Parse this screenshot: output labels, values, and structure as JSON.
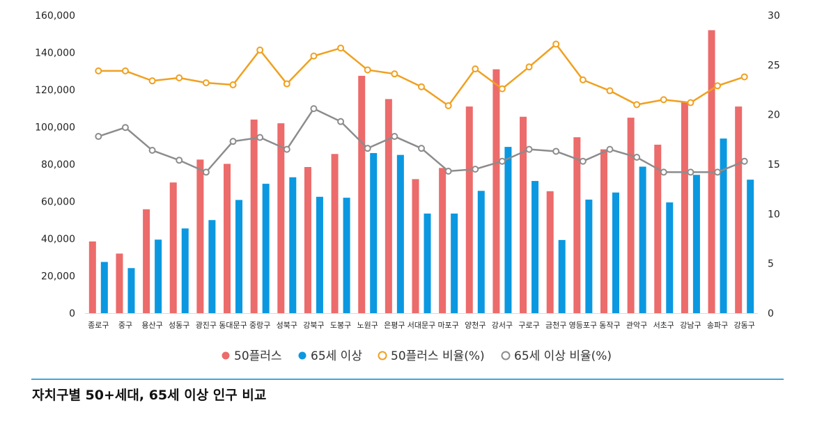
{
  "chart_data": {
    "type": "bar",
    "categories": [
      "종로구",
      "중구",
      "용산구",
      "성동구",
      "광진구",
      "동대문구",
      "중랑구",
      "성북구",
      "강북구",
      "도봉구",
      "노원구",
      "은평구",
      "서대문구",
      "마포구",
      "양천구",
      "강서구",
      "구로구",
      "금천구",
      "영등포구",
      "동작구",
      "관악구",
      "서초구",
      "강남구",
      "송파구",
      "강동구"
    ],
    "series": [
      {
        "name": "50플러스",
        "kind": "bar",
        "axis": "left",
        "color": "#ec6b6b",
        "values": [
          38500,
          32000,
          55800,
          70200,
          82500,
          80200,
          104000,
          102000,
          78500,
          85500,
          127500,
          115000,
          72000,
          78000,
          111000,
          131000,
          105500,
          65500,
          94500,
          88000,
          105000,
          90500,
          113500,
          152000,
          111000
        ]
      },
      {
        "name": "65세 이상",
        "kind": "bar",
        "axis": "left",
        "color": "#0b98e0",
        "values": [
          27500,
          24200,
          39500,
          45500,
          50000,
          60800,
          69500,
          73000,
          62500,
          62000,
          86000,
          85000,
          53500,
          53500,
          65700,
          89300,
          71000,
          39300,
          61000,
          64800,
          78700,
          59500,
          74300,
          93800,
          71700
        ]
      },
      {
        "name": "50플러스 비율(%)",
        "kind": "line",
        "axis": "right",
        "color": "#f0a020",
        "values": [
          24.4,
          24.4,
          23.4,
          23.7,
          23.2,
          23.0,
          26.5,
          23.1,
          25.9,
          26.7,
          24.5,
          24.1,
          22.8,
          20.9,
          24.6,
          22.6,
          24.8,
          27.1,
          23.5,
          22.4,
          21.0,
          21.5,
          21.2,
          22.9,
          23.8
        ]
      },
      {
        "name": "65세 이상 비율(%)",
        "kind": "line",
        "axis": "right",
        "color": "#8c8c8c",
        "values": [
          17.8,
          18.7,
          16.4,
          15.4,
          14.2,
          17.3,
          17.7,
          16.5,
          20.6,
          19.3,
          16.6,
          17.8,
          16.6,
          14.3,
          14.5,
          15.3,
          16.5,
          16.3,
          15.3,
          16.5,
          15.7,
          14.2,
          14.2,
          14.2,
          15.3
        ]
      }
    ],
    "y_left": {
      "min": 0,
      "max": 160000,
      "ticks": [
        0,
        20000,
        40000,
        60000,
        80000,
        100000,
        120000,
        140000,
        160000
      ],
      "tick_labels": [
        "0",
        "20,000",
        "40,000",
        "60,000",
        "80,000",
        "100,000",
        "120,000",
        "140,000",
        "160,000"
      ]
    },
    "y_right": {
      "min": 0,
      "max": 30,
      "ticks": [
        0,
        5,
        10,
        15,
        20,
        25,
        30
      ],
      "tick_labels": [
        "0",
        "5",
        "10",
        "15",
        "20",
        "25",
        "30"
      ]
    },
    "grid": false,
    "legend_position": "bottom",
    "xlabel": "",
    "ylabel": ""
  },
  "caption": "자치구별 50+세대, 65세 이상 인구 비교"
}
